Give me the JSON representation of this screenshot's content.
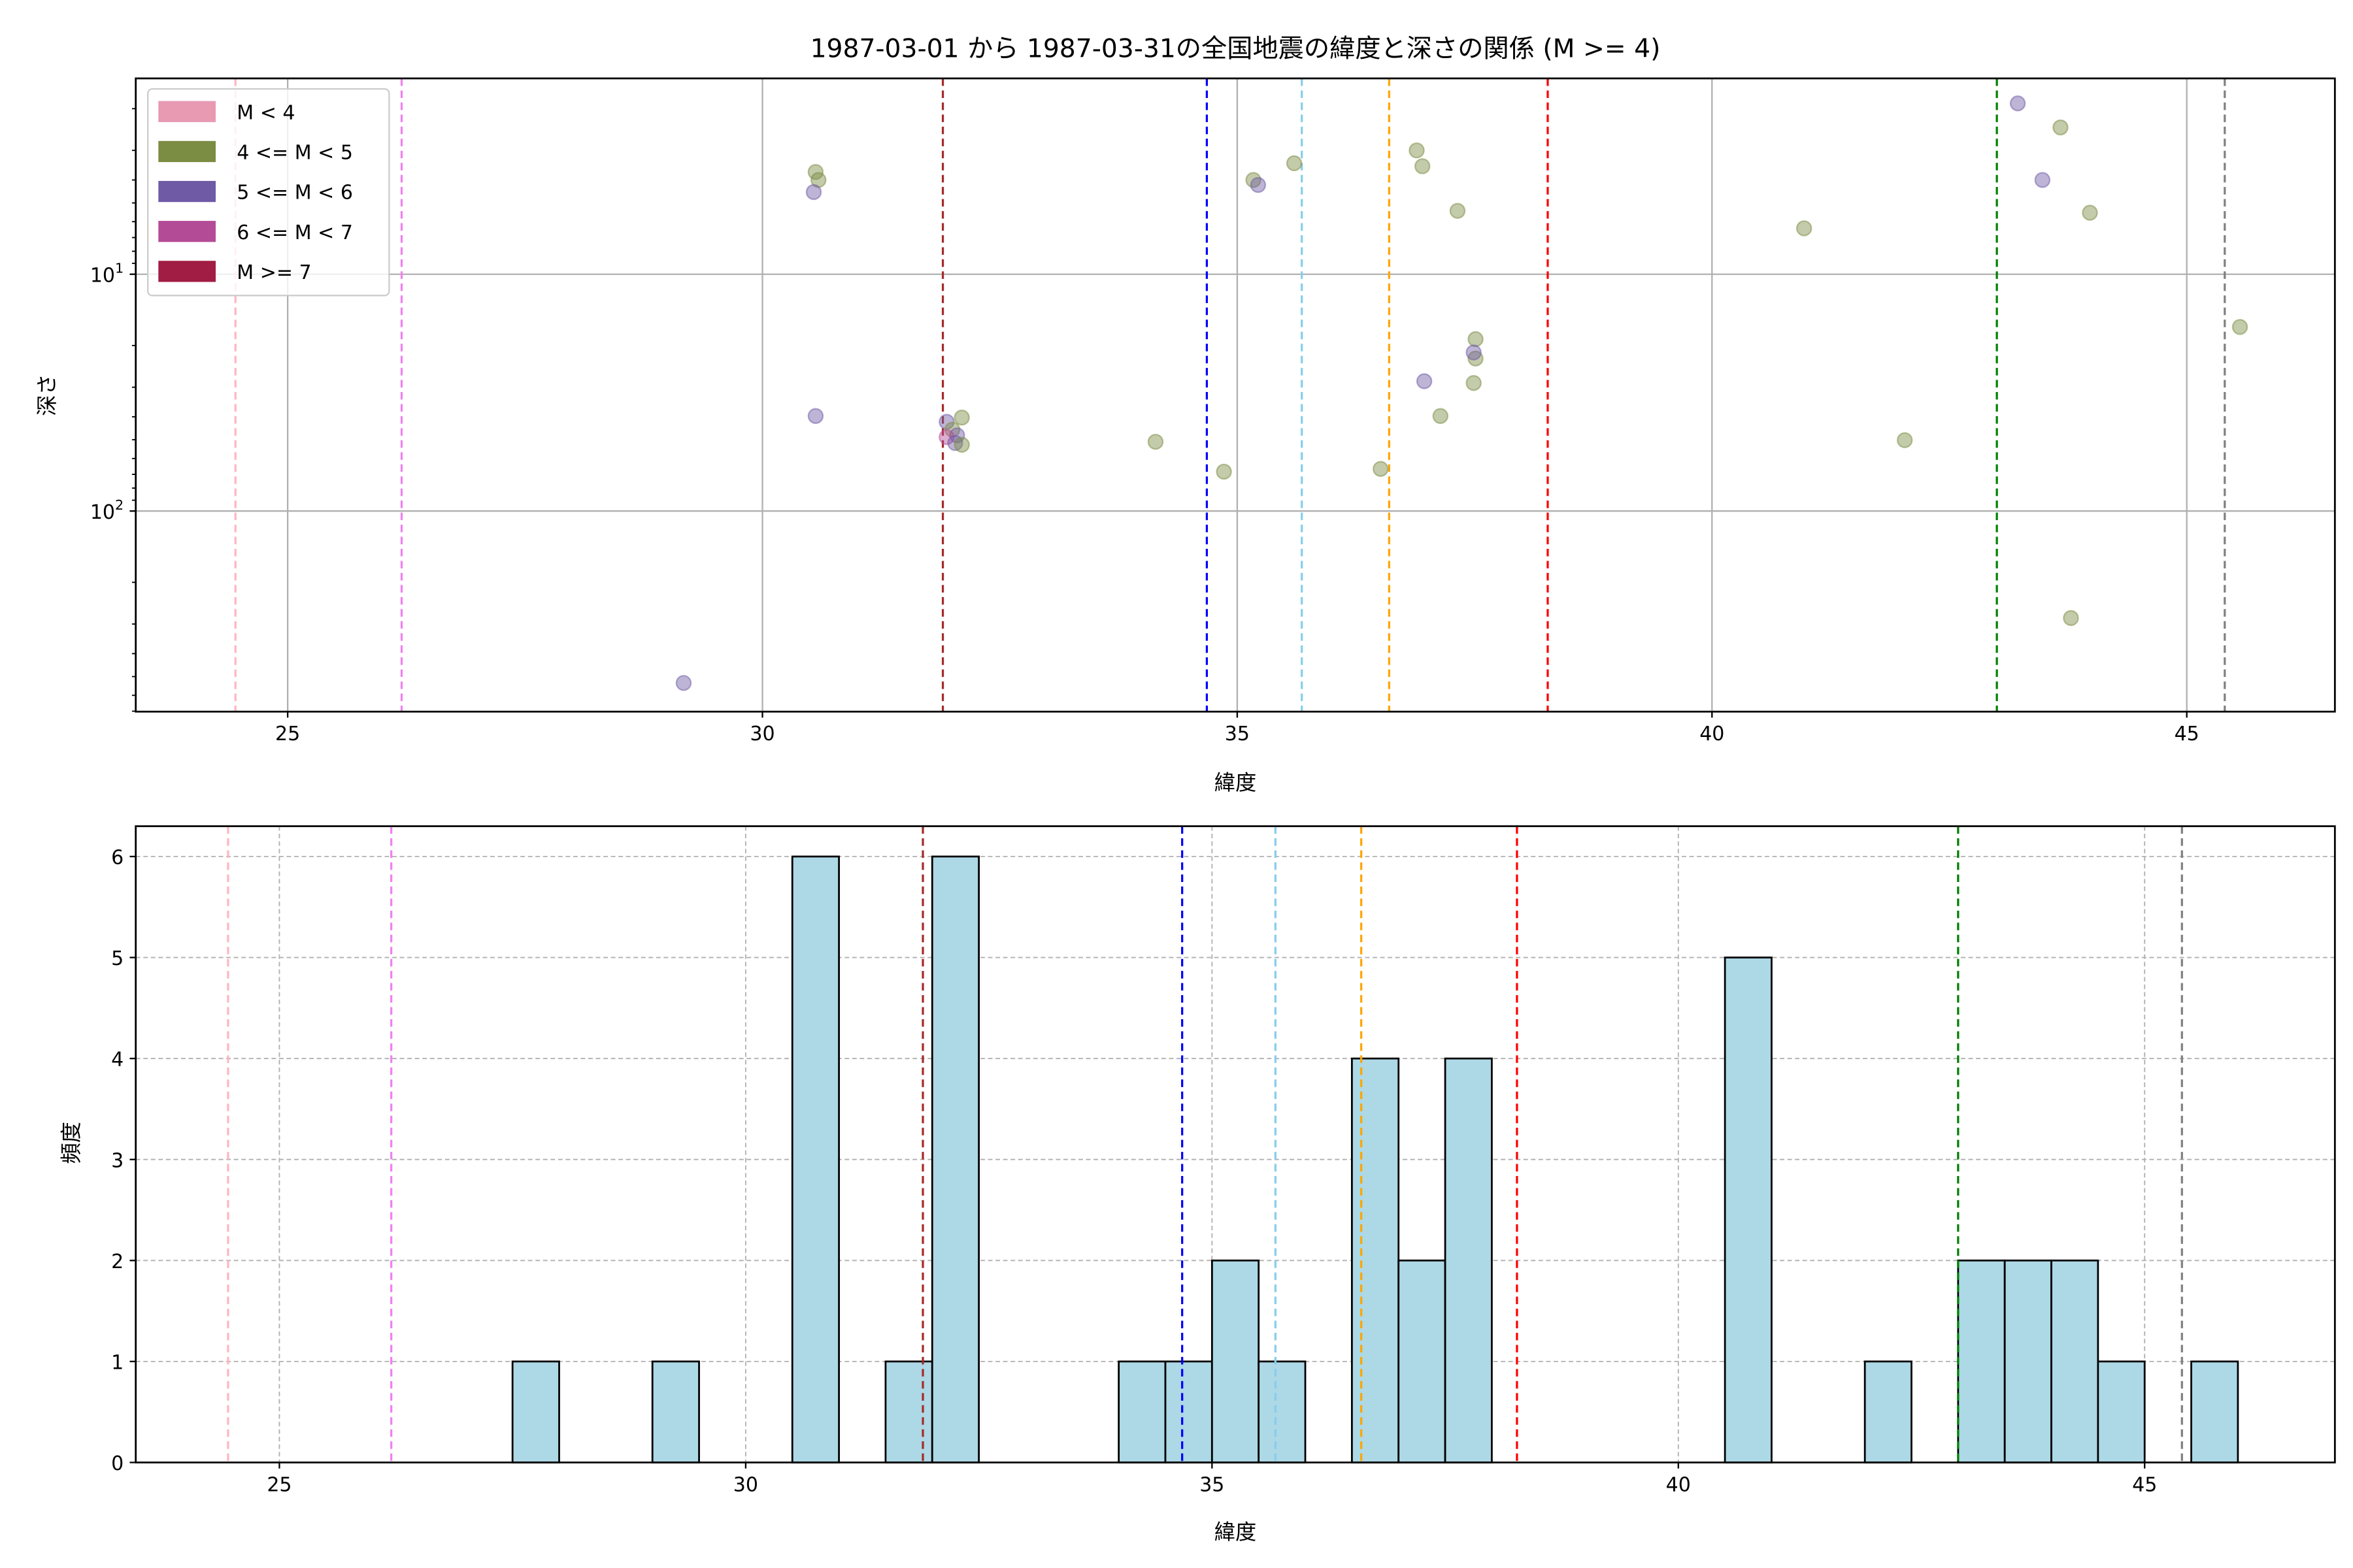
{
  "chart_data": [
    {
      "type": "scatter",
      "title": "1987-03-01 から 1987-03-31の全国地震の緯度と深さの関係 (M >= 4)",
      "xlabel": "緯度",
      "ylabel": "深さ",
      "xlim": [
        23.4,
        46.56
      ],
      "ylim": [
        1.49,
        703
      ],
      "yscale": "log-inverted",
      "xticks": [
        25,
        30,
        35,
        40,
        45
      ],
      "yticks": [
        {
          "value": 10,
          "label": "10",
          "exp": "1"
        },
        {
          "value": 100,
          "label": "10",
          "exp": "2"
        }
      ],
      "grid": true,
      "legend_position": "top-left",
      "legend": [
        {
          "label": "M < 4",
          "color": "#e89ab3"
        },
        {
          "label": "4 <= M < 5",
          "color": "#7b8c43"
        },
        {
          "label": "5 <= M < 6",
          "color": "#6f5aa5"
        },
        {
          "label": "6 <= M < 7",
          "color": "#b44b97"
        },
        {
          "label": "M >= 7",
          "color": "#a11d44"
        }
      ],
      "points": [
        {
          "lat": 30.56,
          "depth": 3.7,
          "class": 1
        },
        {
          "lat": 30.59,
          "depth": 4.0,
          "class": 1
        },
        {
          "lat": 30.54,
          "depth": 4.5,
          "class": 2
        },
        {
          "lat": 30.56,
          "depth": 39.7,
          "class": 2
        },
        {
          "lat": 29.17,
          "depth": 532,
          "class": 2
        },
        {
          "lat": 31.94,
          "depth": 42,
          "class": 2
        },
        {
          "lat": 32.0,
          "depth": 45.3,
          "class": 1
        },
        {
          "lat": 32.1,
          "depth": 40.3,
          "class": 1
        },
        {
          "lat": 32.05,
          "depth": 47.9,
          "class": 2
        },
        {
          "lat": 31.94,
          "depth": 48.7,
          "class": 3
        },
        {
          "lat": 32.03,
          "depth": 51.6,
          "class": 2
        },
        {
          "lat": 32.1,
          "depth": 52.5,
          "class": 1
        },
        {
          "lat": 34.14,
          "depth": 51,
          "class": 1
        },
        {
          "lat": 34.86,
          "depth": 68.2,
          "class": 1
        },
        {
          "lat": 35.17,
          "depth": 4.0,
          "class": 1
        },
        {
          "lat": 35.22,
          "depth": 4.2,
          "class": 2
        },
        {
          "lat": 35.6,
          "depth": 3.4,
          "class": 1
        },
        {
          "lat": 36.89,
          "depth": 3.0,
          "class": 1
        },
        {
          "lat": 36.95,
          "depth": 3.5,
          "class": 1
        },
        {
          "lat": 37.32,
          "depth": 5.4,
          "class": 1
        },
        {
          "lat": 37.51,
          "depth": 18.8,
          "class": 1
        },
        {
          "lat": 37.51,
          "depth": 22.7,
          "class": 1
        },
        {
          "lat": 37.49,
          "depth": 21.4,
          "class": 2
        },
        {
          "lat": 36.97,
          "depth": 28.3,
          "class": 2
        },
        {
          "lat": 37.49,
          "depth": 28.8,
          "class": 1
        },
        {
          "lat": 37.14,
          "depth": 39.7,
          "class": 1
        },
        {
          "lat": 36.51,
          "depth": 66.4,
          "class": 1
        },
        {
          "lat": 40.97,
          "depth": 6.4,
          "class": 1
        },
        {
          "lat": 42.03,
          "depth": 50.2,
          "class": 1
        },
        {
          "lat": 43.22,
          "depth": 1.9,
          "class": 2
        },
        {
          "lat": 43.67,
          "depth": 2.4,
          "class": 1
        },
        {
          "lat": 43.48,
          "depth": 4.0,
          "class": 2
        },
        {
          "lat": 43.98,
          "depth": 5.5,
          "class": 1
        },
        {
          "lat": 43.78,
          "depth": 283,
          "class": 1
        },
        {
          "lat": 45.56,
          "depth": 16.7,
          "class": 1
        }
      ]
    },
    {
      "type": "bar",
      "subtype": "histogram",
      "xlabel": "緯度",
      "ylabel": "頻度",
      "xlim": [
        23.46,
        47.04
      ],
      "ylim": [
        0,
        6.3
      ],
      "xticks": [
        25,
        30,
        35,
        40,
        45
      ],
      "yticks": [
        0,
        1,
        2,
        3,
        4,
        5,
        6
      ],
      "grid": true,
      "bin_width": 0.5,
      "color": "#add8e6",
      "bins": [
        {
          "start": 27.5,
          "count": 1
        },
        {
          "start": 29.0,
          "count": 1
        },
        {
          "start": 30.5,
          "count": 6
        },
        {
          "start": 31.5,
          "count": 1
        },
        {
          "start": 32.0,
          "count": 6
        },
        {
          "start": 34.0,
          "count": 1
        },
        {
          "start": 34.5,
          "count": 1
        },
        {
          "start": 35.0,
          "count": 2
        },
        {
          "start": 35.5,
          "count": 1
        },
        {
          "start": 36.5,
          "count": 4
        },
        {
          "start": 37.0,
          "count": 2
        },
        {
          "start": 37.5,
          "count": 4
        },
        {
          "start": 40.5,
          "count": 5
        },
        {
          "start": 42.0,
          "count": 1
        },
        {
          "start": 43.0,
          "count": 2
        },
        {
          "start": 43.5,
          "count": 2
        },
        {
          "start": 44.0,
          "count": 2
        },
        {
          "start": 44.5,
          "count": 1
        },
        {
          "start": 45.5,
          "count": 1
        }
      ]
    }
  ],
  "reference_lines": [
    {
      "lat": 24.45,
      "color": "#ffb6c1"
    },
    {
      "lat": 26.2,
      "color": "#ee82ee"
    },
    {
      "lat": 31.9,
      "color": "#a52a2a"
    },
    {
      "lat": 34.68,
      "color": "#0000ff"
    },
    {
      "lat": 35.68,
      "color": "#87ceeb"
    },
    {
      "lat": 36.6,
      "color": "#ffa500"
    },
    {
      "lat": 38.27,
      "color": "#ff0000"
    },
    {
      "lat": 43.0,
      "color": "#008000"
    },
    {
      "lat": 45.4,
      "color": "#808080"
    }
  ]
}
